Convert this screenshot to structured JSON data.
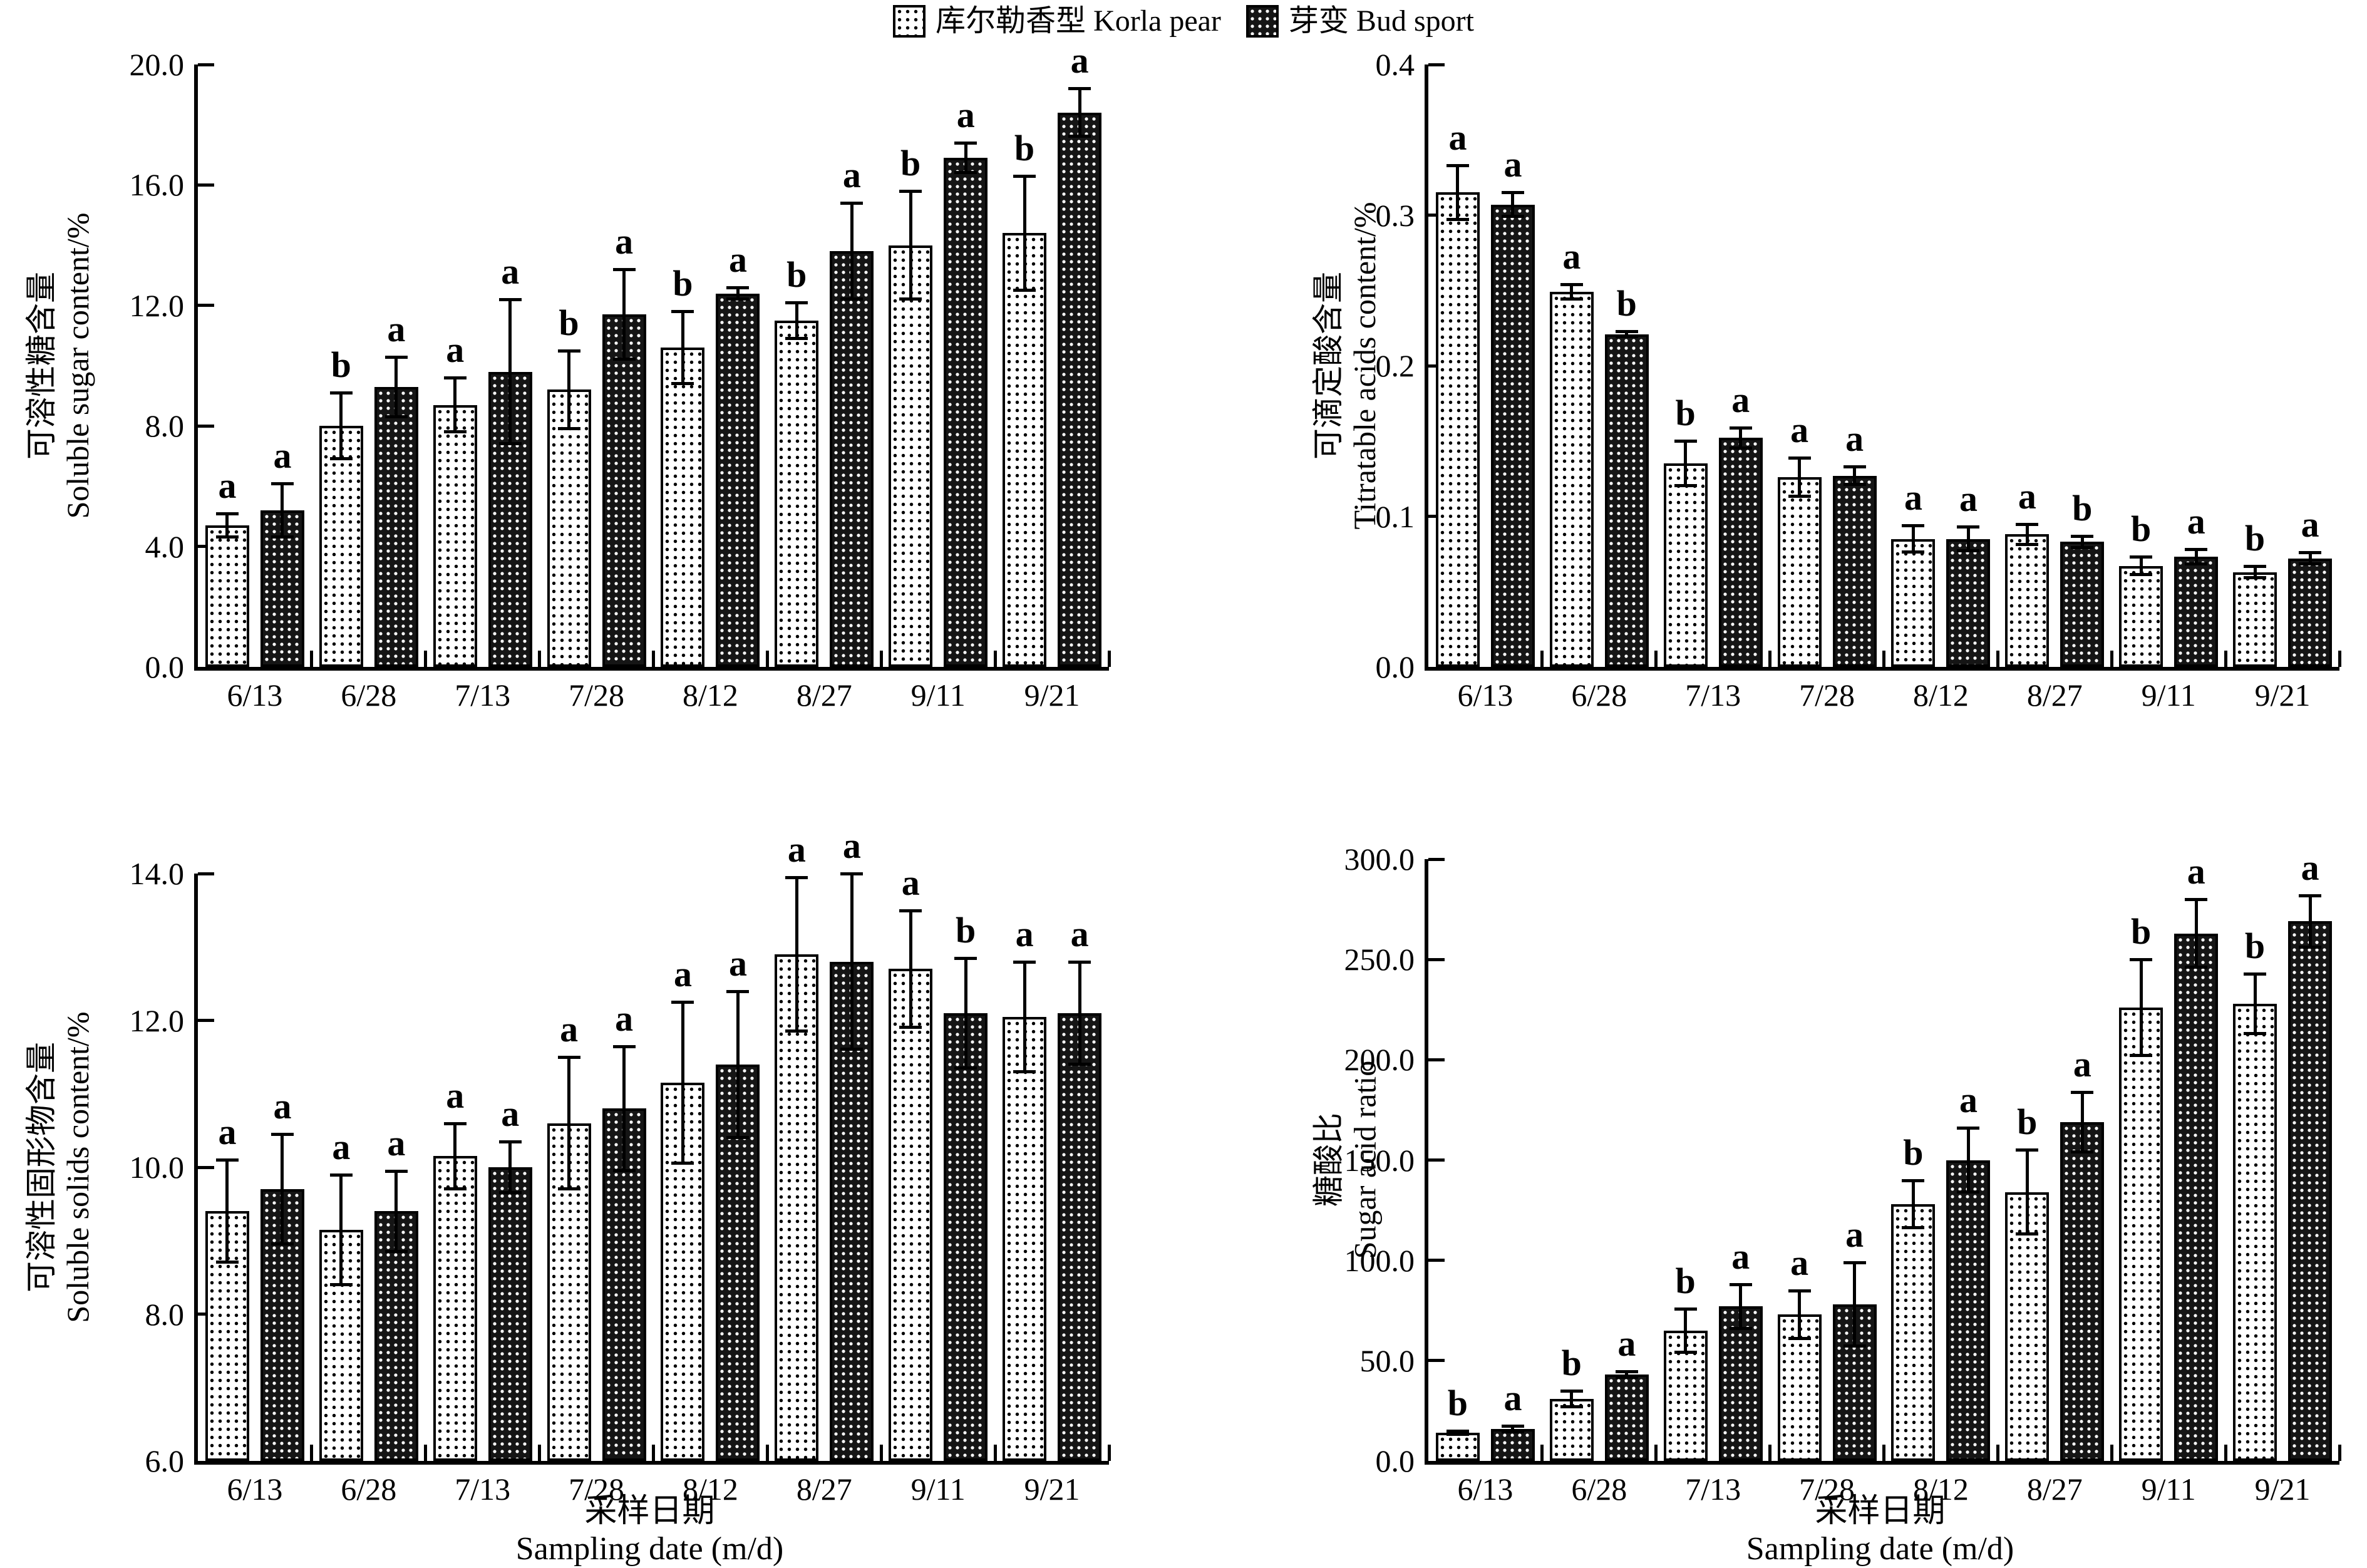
{
  "colors": {
    "background": "#ffffff",
    "ink": "#000000",
    "bud_fill": "#151515"
  },
  "legend": {
    "items": [
      {
        "swatch": "dotted",
        "label": "库尔勒香型 Korla pear"
      },
      {
        "swatch": "checker",
        "label": "芽变 Bud sport"
      }
    ]
  },
  "xlabel": {
    "cn": "采样日期",
    "en": "Sampling date (m/d)"
  },
  "categories": [
    "6/13",
    "6/28",
    "7/13",
    "7/28",
    "8/12",
    "8/27",
    "9/11",
    "9/21"
  ],
  "chart_data": [
    {
      "id": "soluble-sugar",
      "type": "bar",
      "ylabel_cn": "可溶性糖含量",
      "ylabel_en": "Soluble sugar content/%",
      "ylim": [
        0,
        20
      ],
      "ytick_step": 4,
      "ytick_decimals": 1,
      "grid": false,
      "has_xlabel": false,
      "categories": [
        "6/13",
        "6/28",
        "7/13",
        "7/28",
        "8/12",
        "8/27",
        "9/11",
        "9/21"
      ],
      "series": [
        {
          "name": "库尔勒香型 Korla pear",
          "pattern": "dotted",
          "values": [
            4.7,
            8.0,
            8.7,
            9.2,
            10.6,
            11.5,
            14.0,
            14.4
          ],
          "errors": [
            0.4,
            1.1,
            0.9,
            1.3,
            1.2,
            0.6,
            1.8,
            1.9
          ],
          "letters": [
            "a",
            "b",
            "a",
            "b",
            "b",
            "b",
            "b",
            "b"
          ]
        },
        {
          "name": "芽变 Bud sport",
          "pattern": "checker",
          "values": [
            5.2,
            9.3,
            9.8,
            11.7,
            12.4,
            13.8,
            16.9,
            18.4
          ],
          "errors": [
            0.9,
            1.0,
            2.4,
            1.5,
            0.2,
            1.6,
            0.5,
            0.8
          ],
          "letters": [
            "a",
            "a",
            "a",
            "a",
            "a",
            "a",
            "a",
            "a"
          ]
        }
      ]
    },
    {
      "id": "titratable-acids",
      "type": "bar",
      "ylabel_cn": "可滴定酸含量",
      "ylabel_en": "Titratable acids content/%",
      "ylim": [
        0,
        0.4
      ],
      "ytick_step": 0.1,
      "ytick_decimals": 1,
      "grid": false,
      "has_xlabel": false,
      "categories": [
        "6/13",
        "6/28",
        "7/13",
        "7/28",
        "8/12",
        "8/27",
        "9/11",
        "9/21"
      ],
      "series": [
        {
          "name": "库尔勒香型 Korla pear",
          "pattern": "dotted",
          "values": [
            0.315,
            0.249,
            0.135,
            0.126,
            0.085,
            0.088,
            0.067,
            0.063
          ],
          "errors": [
            0.018,
            0.005,
            0.015,
            0.013,
            0.009,
            0.007,
            0.006,
            0.004
          ],
          "letters": [
            "a",
            "a",
            "b",
            "a",
            "a",
            "a",
            "b",
            "b"
          ]
        },
        {
          "name": "芽变 Bud sport",
          "pattern": "checker",
          "values": [
            0.307,
            0.221,
            0.152,
            0.127,
            0.085,
            0.083,
            0.073,
            0.072
          ],
          "errors": [
            0.008,
            0.002,
            0.007,
            0.006,
            0.008,
            0.004,
            0.005,
            0.004
          ],
          "letters": [
            "a",
            "b",
            "a",
            "a",
            "a",
            "b",
            "a",
            "a"
          ]
        }
      ]
    },
    {
      "id": "soluble-solids",
      "type": "bar",
      "ylabel_cn": "可溶性固形物含量",
      "ylabel_en": "Soluble solids content/%",
      "ylim": [
        6,
        14
      ],
      "ytick_step": 2,
      "ytick_decimals": 1,
      "grid": false,
      "has_xlabel": true,
      "categories": [
        "6/13",
        "6/28",
        "7/13",
        "7/28",
        "8/12",
        "8/27",
        "9/11",
        "9/21"
      ],
      "series": [
        {
          "name": "库尔勒香型 Korla pear",
          "pattern": "dotted",
          "values": [
            9.4,
            9.15,
            10.15,
            10.6,
            11.15,
            12.9,
            12.7,
            12.05
          ],
          "errors": [
            0.7,
            0.75,
            0.45,
            0.9,
            1.1,
            1.05,
            0.8,
            0.75
          ],
          "letters": [
            "a",
            "a",
            "a",
            "a",
            "a",
            "a",
            "a",
            "a"
          ]
        },
        {
          "name": "芽变 Bud sport",
          "pattern": "checker",
          "values": [
            9.7,
            9.4,
            10.0,
            10.8,
            11.4,
            12.8,
            12.1,
            12.1
          ],
          "errors": [
            0.75,
            0.55,
            0.35,
            0.85,
            1.0,
            1.2,
            0.75,
            0.7
          ],
          "letters": [
            "a",
            "a",
            "a",
            "a",
            "a",
            "a",
            "b",
            "a"
          ]
        }
      ]
    },
    {
      "id": "sugar-acid-ratio",
      "type": "bar",
      "ylabel_cn": "糖酸比",
      "ylabel_en": "Sugar acid ratio",
      "ylim": [
        0,
        300
      ],
      "ytick_step": 50,
      "ytick_decimals": 1,
      "grid": false,
      "has_xlabel": true,
      "categories": [
        "6/13",
        "6/28",
        "7/13",
        "7/28",
        "8/12",
        "8/27",
        "9/11",
        "9/21"
      ],
      "series": [
        {
          "name": "库尔勒香型 Korla pear",
          "pattern": "dotted",
          "values": [
            14,
            31,
            65,
            73,
            128,
            134,
            226,
            228
          ],
          "errors": [
            1,
            4,
            11,
            12,
            12,
            21,
            24,
            15
          ],
          "letters": [
            "b",
            "b",
            "b",
            "a",
            "b",
            "b",
            "b",
            "b"
          ]
        },
        {
          "name": "芽变 Bud sport",
          "pattern": "checker",
          "values": [
            16,
            43,
            77,
            78,
            150,
            169,
            263,
            269
          ],
          "errors": [
            1.5,
            1.5,
            11,
            21,
            16,
            15,
            17,
            13
          ],
          "letters": [
            "a",
            "a",
            "a",
            "a",
            "a",
            "a",
            "a",
            "a"
          ]
        }
      ]
    }
  ]
}
